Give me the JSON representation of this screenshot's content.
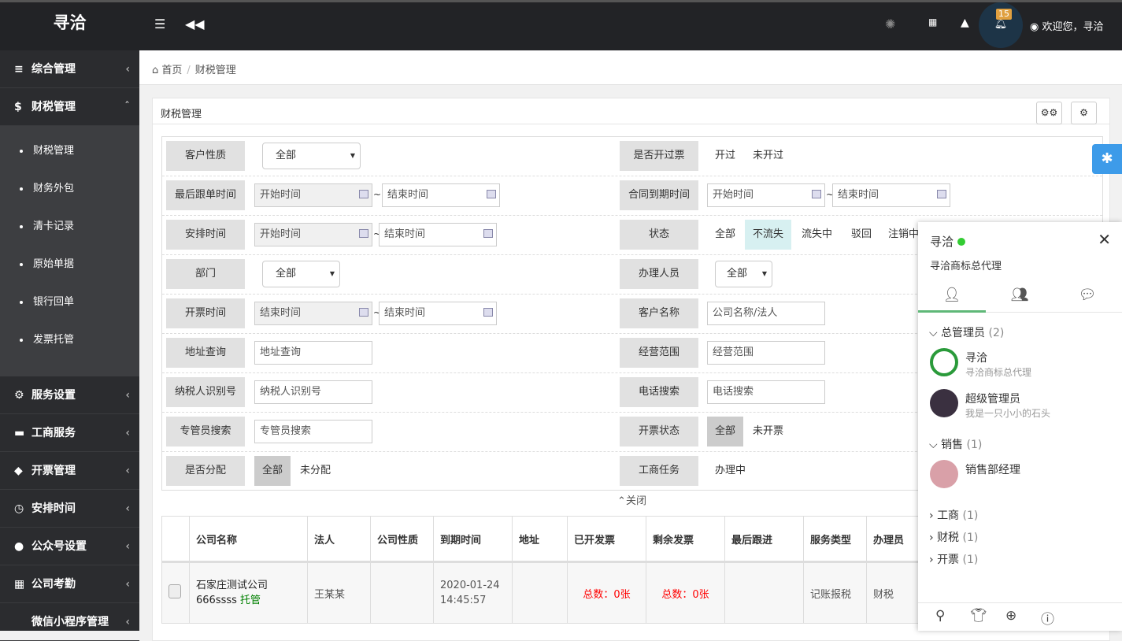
{
  "header": {
    "logo": "寻洽",
    "badge_count": "15",
    "welcome": "欢迎您，寻洽"
  },
  "sidebar": {
    "items": [
      {
        "label": "综合管理",
        "icon": "sliders-icon"
      },
      {
        "label": "财税管理",
        "icon": "dollar-icon"
      },
      {
        "label": "服务设置",
        "icon": "gear-icon"
      },
      {
        "label": "工商服务",
        "icon": "briefcase-icon"
      },
      {
        "label": "开票管理",
        "icon": "tag-icon"
      },
      {
        "label": "安排时间",
        "icon": "clock-icon"
      },
      {
        "label": "公众号设置",
        "icon": "wechat-icon"
      },
      {
        "label": "公司考勤",
        "icon": "calendar-icon"
      },
      {
        "label": "微信小程序管理",
        "icon": ""
      }
    ],
    "sub": [
      "财税管理",
      "财务外包",
      "清卡记录",
      "原始单据",
      "银行回单",
      "发票托管"
    ]
  },
  "breadcrumb": {
    "home": "首页",
    "current": "财税管理"
  },
  "panel": {
    "title": "财税管理",
    "collapse": "关闭"
  },
  "filters": {
    "customer_type": {
      "label": "客户性质",
      "value": "全部"
    },
    "invoiced": {
      "label": "是否开过票",
      "options": [
        "开过",
        "未开过"
      ]
    },
    "last_follow": {
      "label": "最后跟单时间",
      "start": "开始时间",
      "end": "结束时间"
    },
    "contract_due": {
      "label": "合同到期时间",
      "start": "开始时间",
      "end": "结束时间"
    },
    "schedule": {
      "label": "安排时间",
      "start": "开始时间",
      "end": "结束时间"
    },
    "status": {
      "label": "状态",
      "options": [
        "全部",
        "不流失",
        "流失中",
        "驳回",
        "注销中"
      ]
    },
    "dept": {
      "label": "部门",
      "value": "全部"
    },
    "handler": {
      "label": "办理人员",
      "value": "全部"
    },
    "invoice_time": {
      "label": "开票时间",
      "start": "结束时间",
      "end": "结束时间"
    },
    "customer_name": {
      "label": "客户名称",
      "placeholder": "公司名称/法人"
    },
    "address": {
      "label": "地址查询",
      "placeholder": "地址查询"
    },
    "scope": {
      "label": "经营范围",
      "placeholder": "经营范围"
    },
    "taxid": {
      "label": "纳税人识别号",
      "placeholder": "纳税人识别号"
    },
    "phone": {
      "label": "电话搜索",
      "placeholder": "电话搜索"
    },
    "manager": {
      "label": "专管员搜索",
      "placeholder": "专管员搜索"
    },
    "invoice_status": {
      "label": "开票状态",
      "options": [
        "全部",
        "未开票"
      ]
    },
    "assigned": {
      "label": "是否分配",
      "options": [
        "全部",
        "未分配"
      ]
    },
    "biz_task": {
      "label": "工商任务",
      "options": [
        "办理中"
      ]
    }
  },
  "table": {
    "headers": [
      "公司名称",
      "法人",
      "公司性质",
      "到期时间",
      "地址",
      "已开发票",
      "剩余发票",
      "最后跟进",
      "服务类型",
      "办理员"
    ],
    "rows": [
      {
        "company": "石家庄测试公司",
        "code": "666ssss",
        "tag": "托管",
        "legal": "王某某",
        "nature": "",
        "due_date": "2020-01-24",
        "due_time": "14:45:57",
        "address": "",
        "issued": "总数：0张",
        "remaining": "总数：0张",
        "last": "",
        "service": "记账报税",
        "handler": "财税"
      }
    ]
  },
  "chat": {
    "title": "寻洽",
    "subtitle": "寻洽商标总代理",
    "groups": [
      {
        "name": "总管理员",
        "count": "(2)"
      },
      {
        "name": "销售",
        "count": "(1)"
      },
      {
        "name": "工商",
        "count": "(1)"
      },
      {
        "name": "财税",
        "count": "(1)"
      },
      {
        "name": "开票",
        "count": "(1)"
      }
    ],
    "members": [
      {
        "name": "寻洽",
        "sign": "寻洽商标总代理"
      },
      {
        "name": "超级管理员",
        "sign": "我是一只小小的石头"
      },
      {
        "name": "销售部经理",
        "sign": ""
      }
    ]
  }
}
